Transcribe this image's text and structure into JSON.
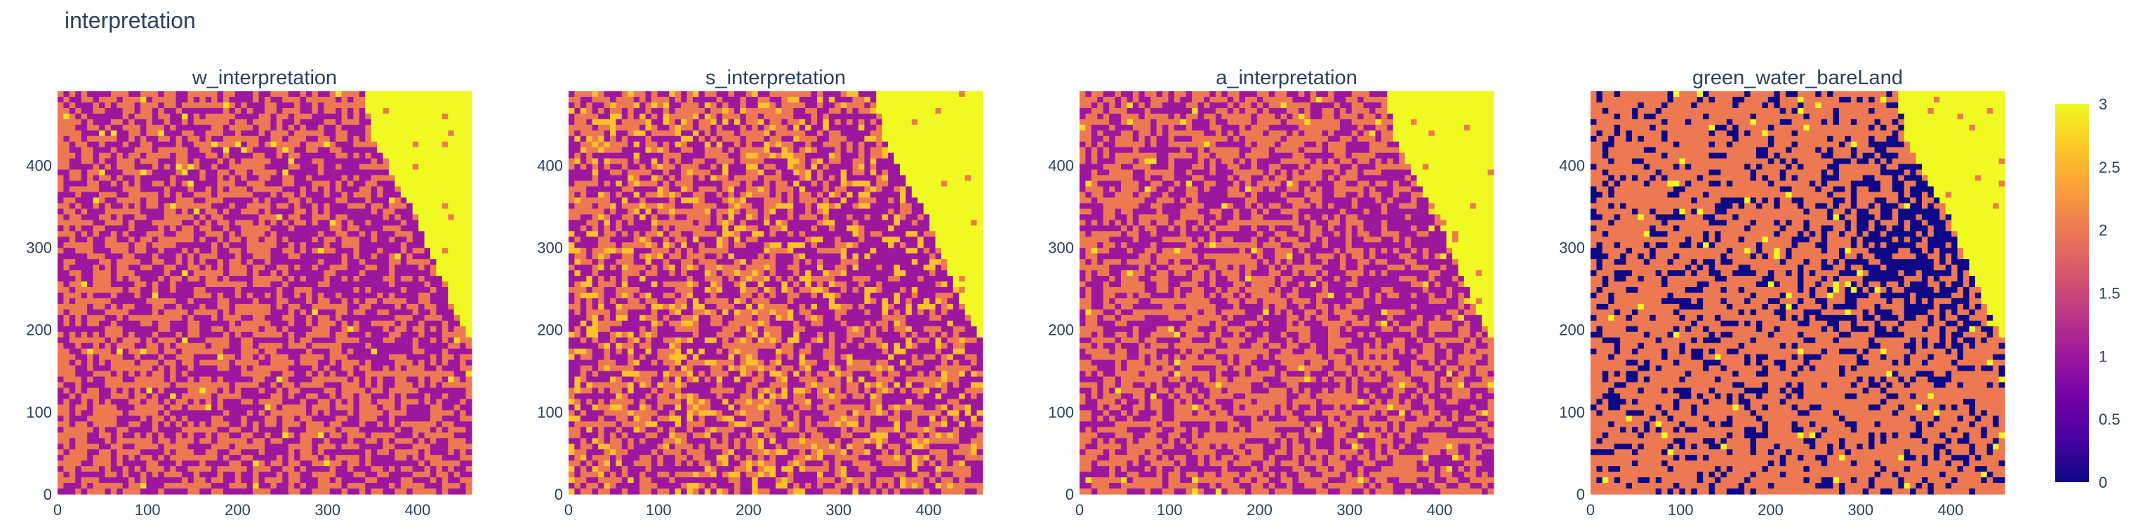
{
  "title": "interpretation",
  "chart_data": {
    "type": "heatmap",
    "colorscale": "plasma",
    "colorscale_stops": [
      "#0d0887",
      "#46039f",
      "#7201a8",
      "#9c179e",
      "#bd3786",
      "#d8576b",
      "#ed7953",
      "#fb9f3a",
      "#fdca26",
      "#f0f921"
    ],
    "zrange": [
      0,
      3
    ],
    "colorbar_ticks": [
      {
        "value": 3,
        "label": "3"
      },
      {
        "value": 2.5,
        "label": "2.5"
      },
      {
        "value": 2,
        "label": "2"
      },
      {
        "value": 1.5,
        "label": "1.5"
      },
      {
        "value": 1,
        "label": "1"
      },
      {
        "value": 0.5,
        "label": "0.5"
      },
      {
        "value": 0,
        "label": "0"
      }
    ],
    "xrange": [
      0,
      460
    ],
    "yrange": [
      0,
      490
    ],
    "x_ticks": [
      {
        "value": 0,
        "label": "0"
      },
      {
        "value": 100,
        "label": "100"
      },
      {
        "value": 200,
        "label": "200"
      },
      {
        "value": 300,
        "label": "300"
      },
      {
        "value": 400,
        "label": "400"
      }
    ],
    "y_ticks": [
      {
        "value": 0,
        "label": "0"
      },
      {
        "value": 100,
        "label": "100"
      },
      {
        "value": 200,
        "label": "200"
      },
      {
        "value": 300,
        "label": "300"
      },
      {
        "value": 400,
        "label": "400"
      }
    ],
    "panels": [
      {
        "title": "w_interpretation",
        "dominant_values": [
          1,
          2
        ],
        "water_value": 3
      },
      {
        "title": "s_interpretation",
        "dominant_values": [
          1,
          2,
          2.5
        ],
        "water_value": 3
      },
      {
        "title": "a_interpretation",
        "dominant_values": [
          1,
          2
        ],
        "water_value": 3
      },
      {
        "title": "green_water_bareLand",
        "dominant_values": [
          0,
          2
        ],
        "water_value": 3
      }
    ]
  }
}
